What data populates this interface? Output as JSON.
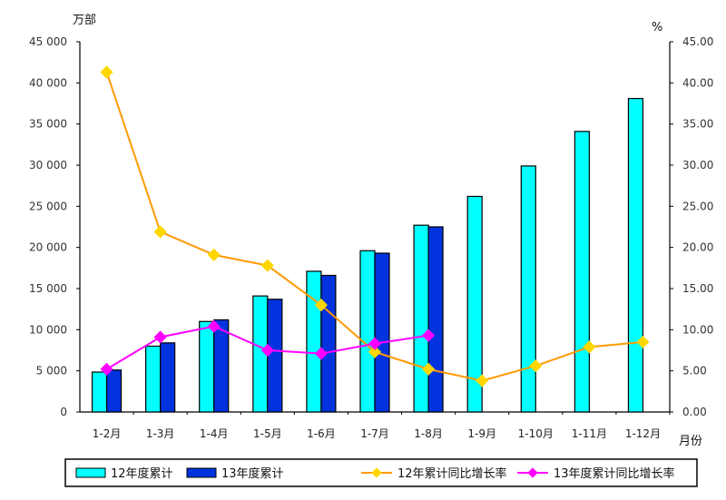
{
  "chart_data": {
    "type": "bar",
    "left_unit": "万部",
    "right_unit": "%",
    "xlabel": "月份",
    "categories": [
      "1-2月",
      "1-3月",
      "1-4月",
      "1-5月",
      "1-6月",
      "1-7月",
      "1-8月",
      "1-9月",
      "1-10月",
      "1-11月",
      "1-12月"
    ],
    "left_ylim": [
      0,
      45000
    ],
    "right_ylim": [
      0,
      45
    ],
    "left_ticks": [
      "0",
      "5 000",
      "10 000",
      "15 000",
      "20 000",
      "25 000",
      "30 000",
      "35 000",
      "40 000",
      "45 000"
    ],
    "right_ticks": [
      "0.00",
      "5.00",
      "10.00",
      "15.00",
      "20.00",
      "25.00",
      "30.00",
      "35.00",
      "40.00",
      "45.00"
    ],
    "series": [
      {
        "name": "12年度累计",
        "type": "bar",
        "axis": "left",
        "color": "#00ffff",
        "values": [
          4850,
          8000,
          11000,
          14100,
          17100,
          19600,
          22700,
          26200,
          29900,
          34100,
          38100
        ]
      },
      {
        "name": "13年度累计",
        "type": "bar",
        "axis": "left",
        "color": "#0033dd",
        "values": [
          5100,
          8400,
          11200,
          13700,
          16600,
          19300,
          22500,
          null,
          null,
          null,
          null
        ]
      },
      {
        "name": "12年累计同比增长率",
        "type": "line",
        "axis": "right",
        "color": "#ff9900",
        "marker": "#ffd700",
        "values": [
          41.3,
          21.9,
          19.1,
          17.8,
          13.0,
          7.3,
          5.2,
          3.8,
          5.6,
          7.9,
          8.5
        ]
      },
      {
        "name": "13年度累计同比增长率",
        "type": "line",
        "axis": "right",
        "color": "#ff00ff",
        "marker": "#ff00ff",
        "values": [
          5.2,
          9.1,
          10.4,
          7.5,
          7.1,
          8.3,
          9.3,
          null,
          null,
          null,
          null
        ]
      }
    ],
    "legend_position": "bottom",
    "grid": false
  }
}
